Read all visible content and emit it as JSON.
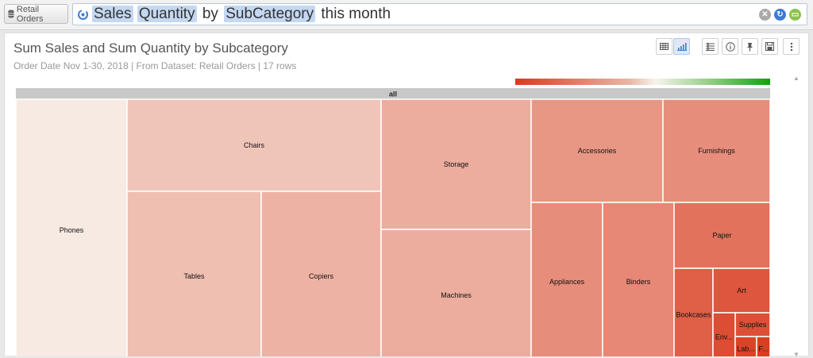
{
  "source": {
    "label": "Retail Orders",
    "icon": "database-icon"
  },
  "search": {
    "tokens": [
      {
        "text": "Sales",
        "highlight": true
      },
      {
        "text": "Quantity",
        "highlight": true
      },
      {
        "text": "by",
        "highlight": false
      },
      {
        "text": "SubCategory",
        "highlight": true
      },
      {
        "text": "this month",
        "highlight": false
      }
    ],
    "icons": [
      "clear-icon",
      "refresh-icon",
      "folder-icon"
    ]
  },
  "viz": {
    "title": "Sum Sales and Sum Quantity by Subcategory",
    "subtitle": "Order Date Nov 1-30, 2018 | From Dataset: Retail Orders | 17 rows",
    "toolbar": [
      "table-view-icon",
      "chart-view-icon",
      "list-settings-icon",
      "info-icon",
      "pin-icon",
      "save-icon",
      "more-options-icon"
    ]
  },
  "chart_data": {
    "type": "treemap",
    "title": "Sum Sales and Sum Quantity by Subcategory",
    "root_label": "all",
    "size_measure": "Sum Sales",
    "color_measure": "Sum Quantity",
    "color_scale": [
      "#d93a1e",
      "#f7f3ec",
      "#12a012"
    ],
    "items": [
      {
        "label": "Phones",
        "size": 2.7,
        "color_value": 0.95
      },
      {
        "label": "Chairs",
        "size": 2.28,
        "color_value": 0.75
      },
      {
        "label": "Tables",
        "size": 1.98,
        "color_value": 0.72
      },
      {
        "label": "Copiers",
        "size": 1.76,
        "color_value": 0.65
      },
      {
        "label": "Storage",
        "size": 2.0,
        "color_value": 0.62
      },
      {
        "label": "Machines",
        "size": 1.96,
        "color_value": 0.62
      },
      {
        "label": "Accessories",
        "size": 1.0,
        "color_value": 0.5
      },
      {
        "label": "Furnishings",
        "size": 0.81,
        "color_value": 0.45
      },
      {
        "label": "Appliances",
        "size": 1.2,
        "color_value": 0.45
      },
      {
        "label": "Binders",
        "size": 1.15,
        "color_value": 0.42
      },
      {
        "label": "Paper",
        "size": 0.69,
        "color_value": 0.3
      },
      {
        "label": "Bookcases",
        "size": 0.5,
        "color_value": 0.2
      },
      {
        "label": "Art",
        "size": 0.38,
        "color_value": 0.15
      },
      {
        "label": "Supplies",
        "size": 0.19,
        "color_value": 0.12
      },
      {
        "label": "Envelopes",
        "size": 0.2,
        "color_value": 0.1
      },
      {
        "label": "Labels",
        "size": 0.1,
        "color_value": 0.05
      },
      {
        "label": "Fasteners",
        "size": 0.08,
        "color_value": 0.02
      }
    ]
  },
  "treemap_display": {
    "Envelopes": "Env...",
    "Labels": "Lab...",
    "Fasteners": "F..."
  }
}
